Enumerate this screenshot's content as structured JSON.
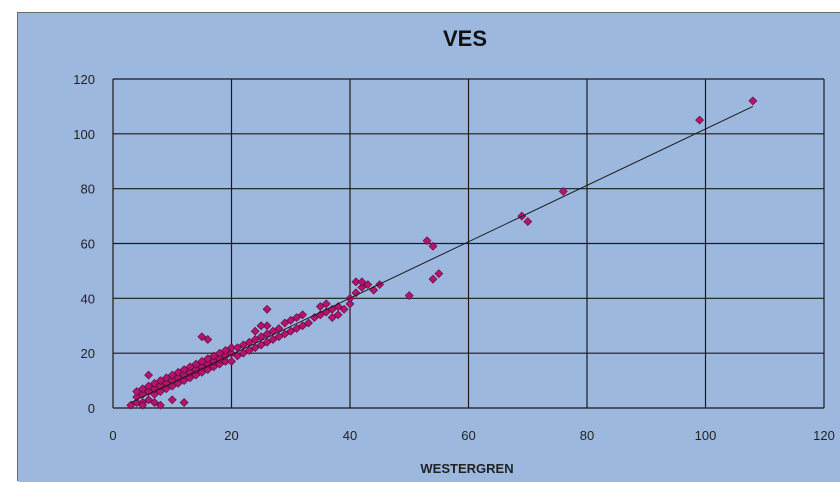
{
  "chart_data": {
    "type": "scatter",
    "title": "VES",
    "xlabel": "WESTERGREN",
    "ylabel": "",
    "xlim": [
      0,
      120
    ],
    "ylim": [
      0,
      120
    ],
    "xticks": [
      "0",
      "20",
      "40",
      "60",
      "80",
      "100",
      "120"
    ],
    "yticks": [
      "0",
      "20",
      "40",
      "60",
      "80",
      "100",
      "120"
    ],
    "grid": true,
    "colors": {
      "background": "#9db8df",
      "plot": "#9db8df",
      "marker": "#b5146e",
      "line": "#1a1a1a",
      "grid": "#1a1a1a"
    },
    "trendline": {
      "x": [
        3,
        108
      ],
      "y": [
        2,
        110
      ]
    },
    "series": [
      {
        "x": [
          3,
          4,
          4,
          5,
          5,
          5,
          6,
          6,
          6,
          7,
          7,
          7,
          8,
          8,
          8,
          9,
          9,
          9,
          10,
          10,
          10,
          11,
          11,
          11,
          12,
          12,
          12,
          13,
          13,
          13,
          14,
          14,
          14,
          15,
          15,
          15,
          16,
          16,
          16,
          17,
          17,
          17,
          18,
          18,
          18,
          19,
          19,
          19,
          20,
          20,
          20,
          21,
          21,
          22,
          22,
          23,
          23,
          24,
          24,
          24,
          25,
          25,
          25,
          26,
          26,
          26,
          27,
          27,
          28,
          28,
          29,
          29,
          30,
          30,
          31,
          31,
          32,
          32,
          33,
          34,
          35,
          35,
          36,
          36,
          37,
          37,
          38,
          38,
          39,
          40,
          40,
          41,
          41,
          42,
          42,
          43,
          44,
          45,
          15,
          16,
          5,
          6,
          7,
          4,
          8,
          10,
          12,
          26,
          25,
          50,
          53,
          54,
          54,
          55,
          69,
          70,
          76,
          99,
          108
        ],
        "y": [
          1,
          2,
          4,
          2,
          5,
          7,
          3,
          6,
          8,
          5,
          7,
          9,
          6,
          8,
          10,
          7,
          9,
          11,
          8,
          10,
          12,
          9,
          11,
          13,
          10,
          12,
          14,
          11,
          13,
          15,
          12,
          14,
          16,
          13,
          15,
          17,
          14,
          16,
          18,
          15,
          17,
          19,
          16,
          18,
          20,
          17,
          19,
          21,
          17,
          20,
          22,
          19,
          22,
          20,
          23,
          21,
          24,
          22,
          25,
          28,
          23,
          26,
          30,
          24,
          27,
          30,
          25,
          28,
          26,
          29,
          27,
          31,
          28,
          32,
          29,
          33,
          30,
          34,
          31,
          33,
          34,
          37,
          35,
          38,
          33,
          36,
          34,
          37,
          36,
          38,
          40,
          42,
          46,
          44,
          46,
          45,
          43,
          45,
          26,
          25,
          1,
          12,
          2,
          6,
          1,
          3,
          2,
          36,
          30,
          41,
          61,
          47,
          59,
          49,
          70,
          68,
          79,
          105,
          112
        ]
      }
    ]
  }
}
